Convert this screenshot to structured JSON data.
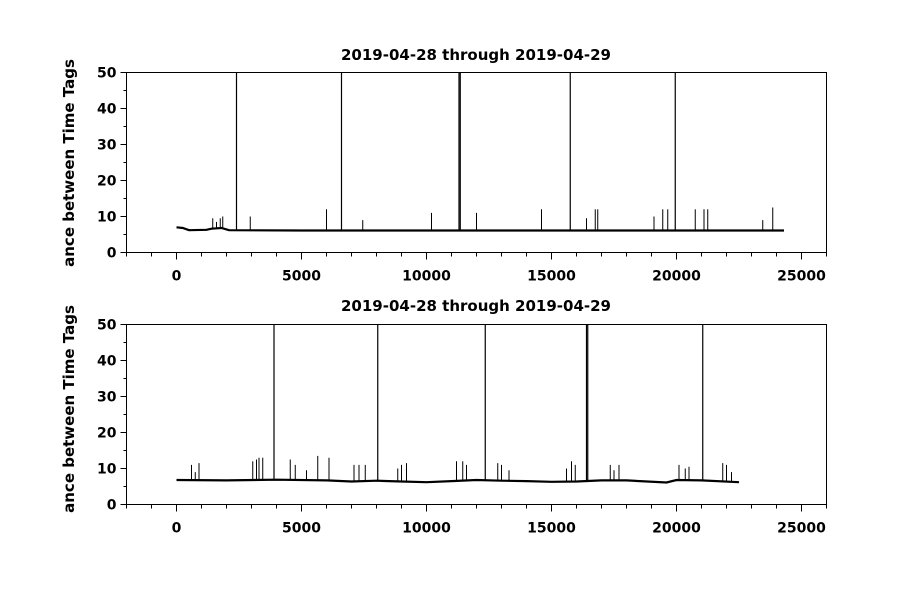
{
  "chart_data": [
    {
      "type": "line",
      "title": "2019-04-28 through 2019-04-29",
      "xlabel": "",
      "ylabel": "ance between Time Tags",
      "xlim": [
        -2000,
        26000
      ],
      "ylim": [
        0,
        50
      ],
      "x_ticks": [
        0,
        5000,
        10000,
        15000,
        20000,
        25000
      ],
      "y_ticks": [
        0,
        10,
        20,
        30,
        40,
        50
      ],
      "grid": false,
      "series": [
        {
          "color": "#000000",
          "baseline": [
            [
              0,
              7.0
            ],
            [
              250,
              6.8
            ],
            [
              500,
              6.2
            ],
            [
              1200,
              6.3
            ],
            [
              1400,
              6.6
            ],
            [
              1800,
              6.8
            ],
            [
              2100,
              6.2
            ],
            [
              5000,
              6.1
            ],
            [
              10000,
              6.1
            ],
            [
              15000,
              6.1
            ],
            [
              20000,
              6.1
            ],
            [
              24300,
              6.1
            ]
          ],
          "spikes": [
            [
              1450,
              9.5
            ],
            [
              1600,
              8.5
            ],
            [
              1750,
              9.5
            ],
            [
              1850,
              10.0
            ],
            [
              2400,
              50.0
            ],
            [
              2950,
              10.0
            ],
            [
              6000,
              12.0
            ],
            [
              6600,
              50.0
            ],
            [
              7450,
              9.0
            ],
            [
              10200,
              11.0
            ],
            [
              11300,
              50.0
            ],
            [
              11350,
              50.0
            ],
            [
              12000,
              11.0
            ],
            [
              14600,
              12.0
            ],
            [
              15750,
              50.0
            ],
            [
              16400,
              9.5
            ],
            [
              16750,
              12.0
            ],
            [
              16850,
              12.0
            ],
            [
              19100,
              10.0
            ],
            [
              19450,
              12.0
            ],
            [
              19650,
              12.0
            ],
            [
              19950,
              50.0
            ],
            [
              20750,
              12.0
            ],
            [
              21100,
              12.0
            ],
            [
              21250,
              12.0
            ],
            [
              23450,
              9.0
            ],
            [
              23850,
              12.5
            ]
          ]
        }
      ]
    },
    {
      "type": "line",
      "title": "2019-04-28 through 2019-04-29",
      "xlabel": "",
      "ylabel": "ance between Time Tags",
      "xlim": [
        -2000,
        26000
      ],
      "ylim": [
        0,
        50
      ],
      "x_ticks": [
        0,
        5000,
        10000,
        15000,
        20000,
        25000
      ],
      "y_ticks": [
        0,
        10,
        20,
        30,
        40,
        50
      ],
      "grid": false,
      "series": [
        {
          "color": "#000000",
          "baseline": [
            [
              0,
              6.8
            ],
            [
              2000,
              6.7
            ],
            [
              4000,
              6.9
            ],
            [
              6000,
              6.7
            ],
            [
              7000,
              6.4
            ],
            [
              8000,
              6.6
            ],
            [
              9000,
              6.4
            ],
            [
              10000,
              6.2
            ],
            [
              11000,
              6.5
            ],
            [
              12000,
              6.8
            ],
            [
              13000,
              6.6
            ],
            [
              14000,
              6.5
            ],
            [
              15000,
              6.3
            ],
            [
              16000,
              6.4
            ],
            [
              17000,
              6.7
            ],
            [
              18000,
              6.7
            ],
            [
              19600,
              6.1
            ],
            [
              20000,
              6.8
            ],
            [
              21000,
              6.7
            ],
            [
              22500,
              6.2
            ]
          ],
          "spikes": [
            [
              600,
              11.0
            ],
            [
              750,
              9.0
            ],
            [
              900,
              11.5
            ],
            [
              3050,
              12.0
            ],
            [
              3200,
              12.5
            ],
            [
              3300,
              13.0
            ],
            [
              3450,
              13.0
            ],
            [
              3900,
              50.0
            ],
            [
              4550,
              12.5
            ],
            [
              4750,
              11.0
            ],
            [
              5200,
              9.5
            ],
            [
              5650,
              13.5
            ],
            [
              6100,
              13.0
            ],
            [
              7100,
              11.0
            ],
            [
              7300,
              11.0
            ],
            [
              7550,
              11.0
            ],
            [
              8050,
              50.0
            ],
            [
              8850,
              10.0
            ],
            [
              9000,
              11.0
            ],
            [
              9200,
              11.5
            ],
            [
              11200,
              12.0
            ],
            [
              11450,
              12.0
            ],
            [
              11600,
              11.0
            ],
            [
              12350,
              50.0
            ],
            [
              12850,
              11.5
            ],
            [
              13000,
              11.0
            ],
            [
              13300,
              9.5
            ],
            [
              15600,
              10.0
            ],
            [
              15800,
              12.0
            ],
            [
              15950,
              11.0
            ],
            [
              16400,
              50.0
            ],
            [
              16450,
              50.0
            ],
            [
              17350,
              11.0
            ],
            [
              17500,
              9.5
            ],
            [
              17700,
              11.0
            ],
            [
              20100,
              11.0
            ],
            [
              20350,
              10.0
            ],
            [
              20500,
              10.5
            ],
            [
              21050,
              50.0
            ],
            [
              21850,
              11.5
            ],
            [
              22000,
              11.0
            ],
            [
              22200,
              9.0
            ]
          ]
        }
      ]
    }
  ]
}
